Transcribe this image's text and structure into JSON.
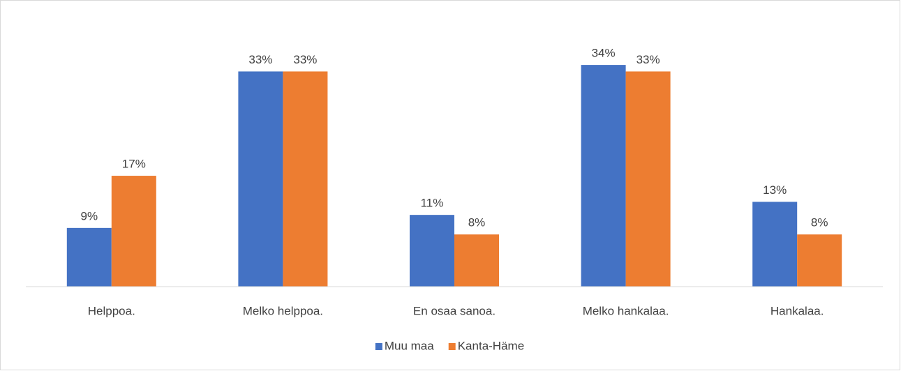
{
  "chart_data": {
    "type": "bar",
    "categories": [
      "Helppoa.",
      "Melko helppoa.",
      "En osaa sanoa.",
      "Melko hankalaa.",
      "Hankalaa."
    ],
    "series": [
      {
        "name": "Muu maa",
        "color": "#4472c4",
        "values": [
          9,
          33,
          11,
          34,
          13
        ],
        "value_labels": [
          "9%",
          "33%",
          "11%",
          "34%",
          "13%"
        ]
      },
      {
        "name": "Kanta-Häme",
        "color": "#ed7d31",
        "values": [
          17,
          33,
          8,
          33,
          8
        ],
        "value_labels": [
          "17%",
          "33%",
          "8%",
          "33%",
          "8%"
        ]
      }
    ],
    "ylim": [
      0,
      40
    ],
    "legend": "bottom"
  }
}
